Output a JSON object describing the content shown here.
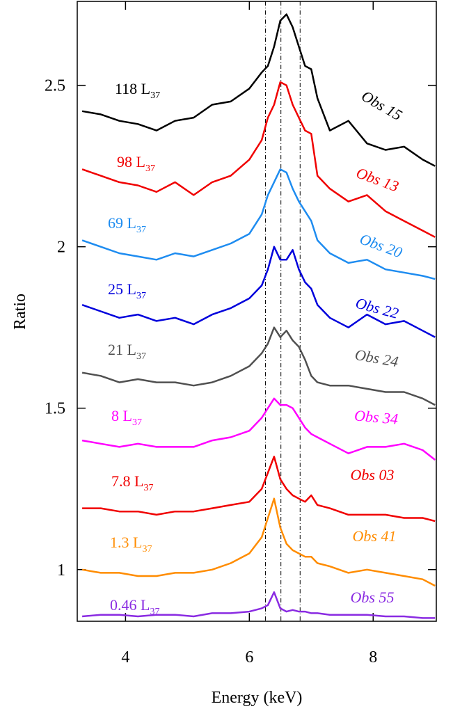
{
  "chart_data": {
    "type": "line",
    "xlabel": "Energy (keV)",
    "ylabel": "Ratio",
    "xlim": [
      3.22,
      9.02
    ],
    "ylim": [
      0.84,
      2.76
    ],
    "xticks": [
      4,
      6,
      8
    ],
    "yticks": [
      1,
      1.5,
      2,
      2.5
    ],
    "vlines": [
      6.26,
      6.51,
      6.82
    ],
    "x": [
      3.3,
      3.6,
      3.9,
      4.2,
      4.5,
      4.8,
      5.1,
      5.4,
      5.7,
      6.0,
      6.2,
      6.3,
      6.4,
      6.5,
      6.6,
      6.7,
      6.8,
      6.9,
      7.0,
      7.1,
      7.3,
      7.6,
      7.9,
      8.2,
      8.5,
      8.8,
      9.0
    ],
    "series": [
      {
        "name": "Obs 15",
        "luminosity": "118 L",
        "luminosity_sub": "37",
        "color": "#000000",
        "values": [
          2.42,
          2.41,
          2.39,
          2.38,
          2.36,
          2.39,
          2.4,
          2.44,
          2.45,
          2.49,
          2.54,
          2.56,
          2.62,
          2.7,
          2.72,
          2.68,
          2.62,
          2.56,
          2.55,
          2.46,
          2.36,
          2.39,
          2.32,
          2.3,
          2.31,
          2.27,
          2.25
        ]
      },
      {
        "name": "Obs 13",
        "luminosity": "98 L",
        "luminosity_sub": "37",
        "color": "#f00000",
        "values": [
          2.24,
          2.22,
          2.2,
          2.19,
          2.17,
          2.2,
          2.16,
          2.2,
          2.22,
          2.27,
          2.33,
          2.4,
          2.44,
          2.51,
          2.5,
          2.44,
          2.4,
          2.36,
          2.35,
          2.22,
          2.18,
          2.14,
          2.16,
          2.11,
          2.08,
          2.05,
          2.03
        ]
      },
      {
        "name": "Obs 20",
        "luminosity": "69 L",
        "luminosity_sub": "37",
        "color": "#1e8cf0",
        "values": [
          2.02,
          2.0,
          1.98,
          1.97,
          1.96,
          1.98,
          1.97,
          1.99,
          2.01,
          2.04,
          2.1,
          2.16,
          2.2,
          2.24,
          2.23,
          2.18,
          2.14,
          2.11,
          2.08,
          2.02,
          1.98,
          1.95,
          1.96,
          1.93,
          1.92,
          1.91,
          1.9
        ]
      },
      {
        "name": "Obs 22",
        "luminosity": "25 L",
        "luminosity_sub": "37",
        "color": "#0000dc",
        "values": [
          1.82,
          1.8,
          1.78,
          1.79,
          1.77,
          1.78,
          1.76,
          1.79,
          1.81,
          1.84,
          1.88,
          1.93,
          2.0,
          1.96,
          1.96,
          1.99,
          1.93,
          1.89,
          1.87,
          1.82,
          1.78,
          1.75,
          1.79,
          1.76,
          1.77,
          1.74,
          1.72
        ]
      },
      {
        "name": "Obs 24",
        "luminosity": "21 L",
        "luminosity_sub": "37",
        "color": "#505050",
        "values": [
          1.61,
          1.6,
          1.58,
          1.59,
          1.58,
          1.58,
          1.57,
          1.58,
          1.6,
          1.63,
          1.67,
          1.7,
          1.75,
          1.72,
          1.74,
          1.71,
          1.69,
          1.65,
          1.6,
          1.58,
          1.57,
          1.57,
          1.56,
          1.55,
          1.55,
          1.53,
          1.51
        ]
      },
      {
        "name": "Obs 34",
        "luminosity": "8 L",
        "luminosity_sub": "37",
        "color": "#ff00ff",
        "values": [
          1.4,
          1.39,
          1.38,
          1.39,
          1.38,
          1.38,
          1.38,
          1.4,
          1.41,
          1.43,
          1.47,
          1.5,
          1.53,
          1.51,
          1.51,
          1.5,
          1.47,
          1.44,
          1.42,
          1.41,
          1.39,
          1.36,
          1.38,
          1.38,
          1.39,
          1.37,
          1.34
        ]
      },
      {
        "name": "Obs 03",
        "luminosity": "7.8 L",
        "luminosity_sub": "37",
        "color": "#f00000",
        "values": [
          1.19,
          1.19,
          1.18,
          1.18,
          1.17,
          1.18,
          1.18,
          1.19,
          1.2,
          1.21,
          1.25,
          1.3,
          1.35,
          1.28,
          1.25,
          1.23,
          1.22,
          1.21,
          1.23,
          1.2,
          1.19,
          1.17,
          1.17,
          1.17,
          1.16,
          1.16,
          1.15
        ]
      },
      {
        "name": "Obs 41",
        "luminosity": "1.3 L",
        "luminosity_sub": "37",
        "color": "#ff8c00",
        "values": [
          1.0,
          0.99,
          0.99,
          0.98,
          0.98,
          0.99,
          0.99,
          1.0,
          1.02,
          1.05,
          1.1,
          1.16,
          1.22,
          1.13,
          1.08,
          1.06,
          1.05,
          1.04,
          1.04,
          1.02,
          1.01,
          0.99,
          1.0,
          0.99,
          0.98,
          0.97,
          0.95
        ]
      },
      {
        "name": "Obs 55",
        "luminosity": "0.46 L",
        "luminosity_sub": "37",
        "color": "#8a2be2",
        "values": [
          0.855,
          0.86,
          0.86,
          0.855,
          0.86,
          0.86,
          0.855,
          0.865,
          0.865,
          0.87,
          0.88,
          0.89,
          0.93,
          0.88,
          0.87,
          0.875,
          0.87,
          0.87,
          0.865,
          0.865,
          0.86,
          0.86,
          0.86,
          0.855,
          0.855,
          0.85,
          0.85
        ]
      }
    ]
  }
}
